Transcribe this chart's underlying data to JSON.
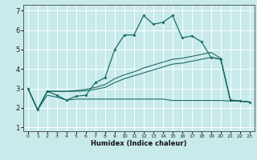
{
  "xlabel": "Humidex (Indice chaleur)",
  "background_color": "#c8eaea",
  "grid_color": "#ffffff",
  "line_color": "#1a6b6b",
  "xlim": [
    -0.5,
    23.5
  ],
  "ylim": [
    0.8,
    7.3
  ],
  "xticks": [
    0,
    1,
    2,
    3,
    4,
    5,
    6,
    7,
    8,
    9,
    10,
    11,
    12,
    13,
    14,
    15,
    16,
    17,
    18,
    19,
    20,
    21,
    22,
    23
  ],
  "yticks": [
    1,
    2,
    3,
    4,
    5,
    6,
    7
  ],
  "line1_x": [
    0,
    1,
    2,
    3,
    4,
    5,
    6,
    7,
    8,
    9,
    10,
    11,
    12,
    13,
    14,
    15,
    16,
    17,
    18,
    19,
    20,
    21,
    22,
    23
  ],
  "line1_y": [
    3.0,
    1.9,
    2.85,
    2.65,
    2.4,
    2.6,
    2.65,
    3.3,
    3.55,
    5.0,
    5.75,
    5.75,
    6.75,
    6.3,
    6.4,
    6.75,
    5.6,
    5.7,
    5.4,
    4.6,
    4.5,
    2.4,
    2.35,
    2.3
  ],
  "line2_x": [
    0,
    1,
    2,
    3,
    4,
    5,
    6,
    7,
    8,
    9,
    10,
    11,
    12,
    13,
    14,
    15,
    16,
    17,
    18,
    19,
    20,
    21,
    22,
    23
  ],
  "line2_y": [
    3.0,
    1.9,
    2.85,
    2.85,
    2.85,
    2.9,
    2.95,
    3.05,
    3.2,
    3.5,
    3.7,
    3.85,
    4.05,
    4.2,
    4.35,
    4.5,
    4.55,
    4.65,
    4.75,
    4.85,
    4.55,
    2.4,
    2.35,
    2.3
  ],
  "line3_x": [
    0,
    1,
    2,
    3,
    4,
    5,
    6,
    7,
    8,
    9,
    10,
    11,
    12,
    13,
    14,
    15,
    16,
    17,
    18,
    19,
    20,
    21,
    22,
    23
  ],
  "line3_y": [
    3.0,
    1.9,
    2.85,
    2.85,
    2.85,
    2.85,
    2.88,
    2.95,
    3.05,
    3.3,
    3.5,
    3.65,
    3.8,
    3.95,
    4.1,
    4.25,
    4.3,
    4.4,
    4.5,
    4.6,
    4.5,
    2.4,
    2.35,
    2.3
  ],
  "line4_x": [
    0,
    1,
    2,
    3,
    4,
    5,
    6,
    7,
    8,
    9,
    10,
    11,
    12,
    13,
    14,
    15,
    16,
    17,
    18,
    19,
    20,
    21,
    22,
    23
  ],
  "line4_y": [
    3.0,
    1.9,
    2.65,
    2.55,
    2.4,
    2.45,
    2.45,
    2.45,
    2.45,
    2.45,
    2.45,
    2.45,
    2.45,
    2.45,
    2.45,
    2.38,
    2.38,
    2.38,
    2.38,
    2.38,
    2.38,
    2.35,
    2.35,
    2.3
  ]
}
